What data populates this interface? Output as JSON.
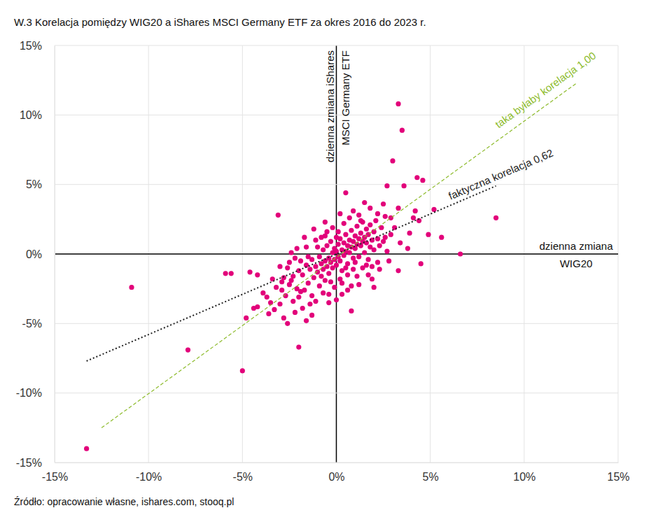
{
  "chart_data": {
    "type": "scatter",
    "title": "W.3 Korelacja pomiędzy WIG20 a iShares MSCI Germany ETF za okres 2016 do 2023 r.",
    "source": "Źródło: opracowanie własne, ishares.com, stooq.pl",
    "xlabel": [
      "dzienna zmiana",
      "WIG20"
    ],
    "ylabel": [
      "dzienna zmiana iShares",
      "MSCI Germany ETF"
    ],
    "xlim": [
      -15,
      15
    ],
    "ylim": [
      -15,
      15
    ],
    "xticks": [
      {
        "value": -15,
        "label": "-15%"
      },
      {
        "value": -10,
        "label": "-10%"
      },
      {
        "value": -5,
        "label": "-5%"
      },
      {
        "value": 0,
        "label": "0%"
      },
      {
        "value": 5,
        "label": "5%"
      },
      {
        "value": 10,
        "label": "10%"
      },
      {
        "value": 15,
        "label": "15%"
      }
    ],
    "yticks": [
      {
        "value": -15,
        "label": "-15%"
      },
      {
        "value": -10,
        "label": "-10%"
      },
      {
        "value": -5,
        "label": "-5%"
      },
      {
        "value": 0,
        "label": "0%"
      },
      {
        "value": 5,
        "label": "5%"
      },
      {
        "value": 10,
        "label": "10%"
      },
      {
        "value": 15,
        "label": "15%"
      }
    ],
    "grid": true,
    "series": [
      {
        "type": "scatter",
        "color": "#e2007a",
        "marker": "circle",
        "x": [
          -13.3,
          -10.9,
          -7.9,
          -5.9,
          -5.6,
          -5.0,
          -2.0,
          3.3,
          3.5,
          3.0,
          8.5,
          6.6,
          5.2,
          4.6,
          4.3,
          3.6,
          2.7,
          0.5,
          -3.1,
          -4.2,
          -4.4,
          -4.8,
          -4.6,
          -4.2,
          -3.9,
          -3.3,
          -2.8,
          -2.6,
          -1.6,
          0.0,
          0.8,
          5.6,
          4.9,
          4.1,
          4.4,
          3.8,
          4.5,
          3.3,
          1.5,
          2.5,
          3.3,
          2.2,
          1.8,
          2.9,
          3.1,
          2.6,
          3.4,
          2.8,
          2.3,
          1.9,
          1.2,
          0.6,
          -0.4,
          -1.1,
          -1.8,
          -2.3,
          -2.9,
          -3.4,
          -3.7,
          -2.5,
          -3.0,
          -2.1,
          -1.7,
          -1.2,
          -0.6,
          0.2,
          0.9,
          1.3,
          -2.4,
          -1.9,
          -3.6,
          -3.0,
          -2.2,
          -1.3,
          0.3,
          1.6,
          2.0,
          2.7,
          3.9,
          4.2,
          -1.8,
          -1.6,
          -1.5,
          -1.4,
          -1.3,
          -1.2,
          -1.1,
          -1.0,
          -0.9,
          -0.9,
          -0.8,
          -0.8,
          -0.7,
          -0.7,
          -0.6,
          -0.6,
          -0.5,
          -0.5,
          -0.4,
          -0.4,
          -0.3,
          -0.3,
          -0.2,
          -0.2,
          -0.1,
          -0.1,
          0.0,
          0.0,
          0.1,
          0.1,
          0.2,
          0.2,
          0.3,
          0.3,
          0.4,
          0.4,
          0.5,
          0.5,
          0.6,
          0.6,
          0.7,
          0.7,
          0.8,
          0.8,
          0.9,
          0.9,
          1.0,
          1.0,
          1.1,
          1.1,
          1.2,
          1.2,
          1.3,
          1.3,
          1.4,
          1.4,
          1.5,
          1.5,
          1.6,
          1.6,
          1.7,
          1.7,
          1.8,
          1.8,
          1.9,
          2.0,
          2.0,
          2.1,
          2.2,
          2.3,
          2.4,
          2.5,
          -2.0,
          -2.1,
          -2.2,
          -2.3,
          -2.5,
          -2.6,
          -2.7,
          -2.8,
          -1.9,
          -1.7,
          -1.5,
          -1.3,
          -1.0,
          -0.8,
          -0.5,
          -0.2,
          0.1,
          0.4,
          0.6,
          0.9,
          1.1,
          1.4,
          0.2,
          -0.1,
          -0.4,
          0.3,
          1.7,
          2.2,
          -1.6,
          -1.1,
          -0.6,
          0.0,
          0.5,
          1.0,
          1.9,
          -2.4,
          -2.9,
          -3.2,
          -0.3,
          0.7,
          1.2,
          -1.4,
          -0.7,
          0.8,
          2.6,
          2.9,
          -3.5,
          -2.0
        ],
        "values": [
          -14.0,
          -2.4,
          -6.9,
          -1.4,
          -1.4,
          -8.4,
          -6.7,
          10.8,
          8.9,
          6.7,
          2.6,
          0.0,
          3.2,
          5.3,
          5.5,
          4.9,
          4.9,
          4.4,
          2.8,
          -3.8,
          -3.9,
          -4.6,
          -1.3,
          -1.5,
          -2.8,
          -4.0,
          -4.6,
          -5.0,
          -4.8,
          -3.3,
          -4.1,
          1.2,
          1.4,
          2.6,
          2.4,
          0.4,
          -0.7,
          -1.2,
          3.7,
          3.6,
          3.3,
          2.9,
          3.3,
          2.6,
          1.9,
          1.2,
          0.8,
          -0.5,
          -1.1,
          -1.8,
          -2.2,
          -2.6,
          -2.9,
          -3.4,
          -3.9,
          -3.4,
          -2.6,
          -1.8,
          -3.1,
          -0.6,
          -0.9,
          0.4,
          1.2,
          1.8,
          2.3,
          2.9,
          3.1,
          2.4,
          -1.9,
          -2.7,
          -4.3,
          -3.6,
          -4.2,
          -4.4,
          -2.1,
          -0.8,
          -2.4,
          0.2,
          1.5,
          3.1,
          -1.5,
          -0.8,
          -2.1,
          -1.1,
          -0.4,
          -1.7,
          -0.9,
          -1.3,
          -0.2,
          -2.3,
          -0.7,
          -1.6,
          0.3,
          -1.1,
          -0.5,
          -1.9,
          0.6,
          -0.9,
          -0.3,
          -1.4,
          0.9,
          -0.6,
          0.1,
          -1.0,
          0.4,
          -0.4,
          0.2,
          -0.8,
          0.7,
          -0.2,
          1.1,
          -0.5,
          0.3,
          -1.2,
          0.8,
          -0.1,
          1.4,
          0.2,
          0.6,
          -0.7,
          1.0,
          0.1,
          1.7,
          0.5,
          0.9,
          -0.3,
          1.3,
          0.4,
          2.0,
          0.7,
          1.1,
          -0.2,
          1.5,
          0.6,
          0.9,
          2.3,
          1.2,
          0.1,
          1.8,
          0.8,
          1.4,
          -0.4,
          0.5,
          2.1,
          1.0,
          1.6,
          0.3,
          2.4,
          1.1,
          0.6,
          1.9,
          0.9,
          -1.2,
          -2.5,
          -0.3,
          -1.6,
          -2.2,
          -1.0,
          -3.0,
          -1.7,
          -0.5,
          -2.6,
          -0.2,
          -3.0,
          0.5,
          1.2,
          1.6,
          1.9,
          1.6,
          2.2,
          -1.5,
          -1.1,
          -1.6,
          -1.0,
          -1.8,
          -2.4,
          -3.5,
          -2.9,
          -1.5,
          -0.6,
          0.5,
          1.0,
          1.3,
          1.2,
          -1.0,
          -0.6,
          -0.9,
          0.1,
          -2.0,
          -2.4,
          -2.0,
          2.6,
          2.8,
          -3.6,
          -2.8,
          -2.3,
          2.7,
          1.4,
          -3.5,
          -3.1
        ]
      },
      {
        "type": "line",
        "name": "taka byłaby korelacja 1,00",
        "color": "#8dbb2c",
        "line_style": "dashed",
        "x": [
          -12.5,
          12.8
        ],
        "values": [
          -12.5,
          12.3
        ]
      },
      {
        "type": "line",
        "name": "faktyczna korelacja 0,62",
        "color": "#222222",
        "line_style": "dotted",
        "x": [
          -13.3,
          8.5
        ],
        "values": [
          -7.7,
          4.9
        ]
      }
    ]
  }
}
